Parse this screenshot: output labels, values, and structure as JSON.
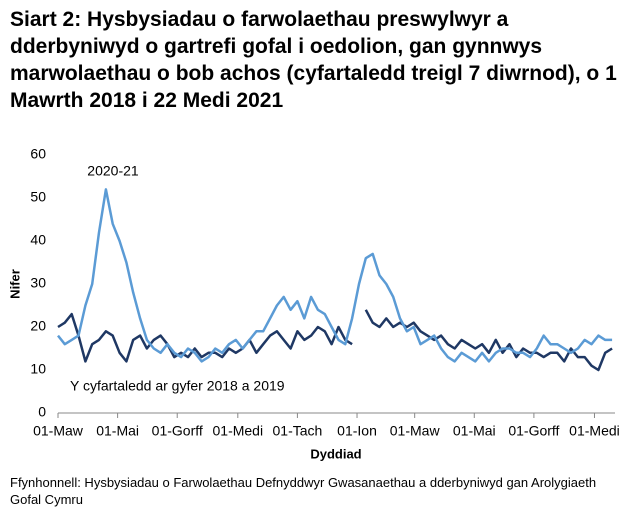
{
  "chart_data": {
    "type": "line",
    "title": "Siart 2: Hysbysiadau o farwolaethau preswylwyr a dderbyniwyd o gartrefi gofal i oedolion, gan gynnwys marwolaethau o bob achos (cyfartaledd treigl 7 diwrnod), o 1 Mawrth 2018 i 22 Medi 2021",
    "x_label": "Dyddiad",
    "y_label": "Nifer",
    "source": "Ffynhonnell: Hysbysiadau o Farwolaethau Defnyddwyr Gwasanaethau a dderbyniwyd gan Arolygiaeth Gofal Cymru",
    "x": [
      0,
      7,
      14,
      21,
      28,
      35,
      42,
      49,
      56,
      63,
      70,
      77,
      84,
      91,
      98,
      105,
      112,
      119,
      126,
      133,
      140,
      147,
      154,
      161,
      168,
      175,
      182,
      189,
      196,
      203,
      210,
      217,
      224,
      231,
      238,
      245,
      252,
      259,
      266,
      273,
      280,
      287,
      294,
      301,
      308,
      315,
      322,
      329,
      336,
      343,
      350,
      357,
      364,
      371,
      378,
      385,
      392,
      399,
      406,
      413,
      420,
      427,
      434,
      441,
      448,
      455,
      462,
      469,
      476,
      483,
      490,
      497,
      504,
      511,
      518,
      525,
      532,
      539,
      546,
      553,
      560,
      567
    ],
    "series": [
      {
        "name": "2020-21",
        "color": "#5b9bd5",
        "values": [
          18,
          16,
          17,
          18,
          25,
          30,
          42,
          52,
          44,
          40,
          35,
          28,
          22,
          17,
          15,
          14,
          16,
          14,
          13,
          15,
          14,
          12,
          13,
          15,
          14,
          16,
          17,
          15,
          17,
          19,
          19,
          22,
          25,
          27,
          24,
          26,
          22,
          27,
          24,
          23,
          20,
          17,
          16,
          22,
          30,
          36,
          37,
          32,
          30,
          27,
          22,
          19,
          20,
          16,
          17,
          18,
          15,
          13,
          12,
          14,
          13,
          12,
          14,
          12,
          14,
          15,
          15,
          14,
          14,
          13,
          15,
          18,
          16,
          16,
          15,
          14,
          15,
          17,
          16,
          18,
          17,
          17
        ]
      },
      {
        "name": "Y cyfartaledd ar gyfer 2018 a 2019",
        "color": "#1f3864",
        "values": [
          20,
          21,
          23,
          18,
          12,
          16,
          17,
          19,
          18,
          14,
          12,
          17,
          18,
          15,
          17,
          18,
          16,
          13,
          14,
          13,
          15,
          13,
          14,
          14,
          13,
          15,
          14,
          15,
          17,
          14,
          16,
          18,
          19,
          17,
          15,
          19,
          17,
          18,
          20,
          19,
          16,
          20,
          17,
          16,
          null,
          24,
          21,
          20,
          22,
          20,
          21,
          20,
          21,
          19,
          18,
          17,
          18,
          16,
          15,
          17,
          16,
          15,
          16,
          14,
          17,
          14,
          16,
          13,
          15,
          14,
          14,
          13,
          14,
          14,
          12,
          15,
          13,
          13,
          11,
          10,
          14,
          15
        ]
      }
    ],
    "xlim": [
      0,
      570
    ],
    "xticks": [
      {
        "value": 0,
        "label": "01-Maw"
      },
      {
        "value": 61,
        "label": "01-Mai"
      },
      {
        "value": 122,
        "label": "01-Gorff"
      },
      {
        "value": 184,
        "label": "01-Medi"
      },
      {
        "value": 245,
        "label": "01-Tach"
      },
      {
        "value": 306,
        "label": "01-Ion"
      },
      {
        "value": 365,
        "label": "01-Maw"
      },
      {
        "value": 426,
        "label": "01-Mai"
      },
      {
        "value": 487,
        "label": "01-Gorff"
      },
      {
        "value": 549,
        "label": "01-Medi"
      }
    ],
    "ylim": [
      0,
      60
    ],
    "yticks": [
      0,
      10,
      20,
      30,
      40,
      50,
      60
    ],
    "grid": false
  }
}
